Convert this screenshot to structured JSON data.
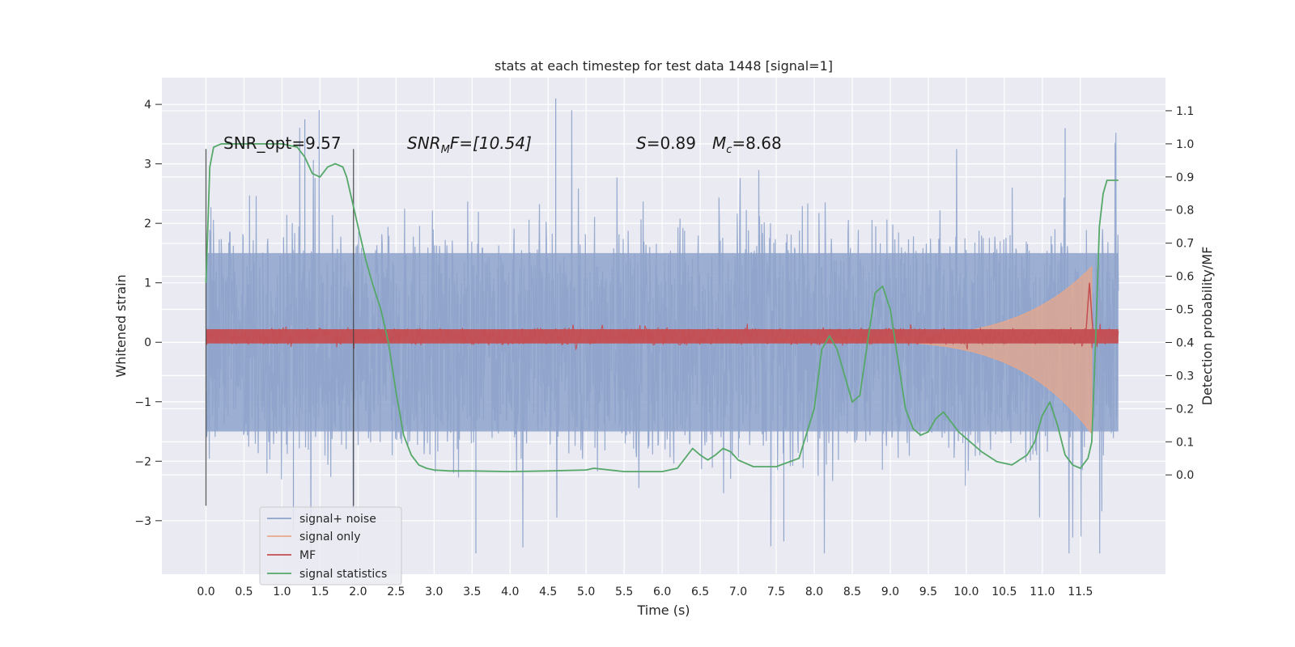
{
  "chart_data": {
    "type": "line",
    "title": "stats at each timestep for test data 1448 [signal=1]",
    "xlabel": "Time (s)",
    "ylabel": "Whitened strain",
    "ylabel_right": "Detection probability/MF",
    "xlim": [
      -0.58,
      12.62
    ],
    "ylim": [
      -3.9,
      4.45
    ],
    "ylim_right": [
      -0.3,
      1.2
    ],
    "x_ticks": [
      "0.0",
      "0.5",
      "1.0",
      "1.5",
      "2.0",
      "2.5",
      "3.0",
      "3.5",
      "4.0",
      "4.5",
      "5.0",
      "5.5",
      "6.0",
      "6.5",
      "7.0",
      "7.5",
      "8.0",
      "8.5",
      "9.0",
      "9.5",
      "10.0",
      "10.5",
      "11.0",
      "11.5"
    ],
    "y_ticks": [
      "−3",
      "−2",
      "−1",
      "0",
      "1",
      "2",
      "3",
      "4"
    ],
    "y_ticks_right": [
      "0.0",
      "0.1",
      "0.2",
      "0.3",
      "0.4",
      "0.5",
      "0.6",
      "0.7",
      "0.8",
      "0.9",
      "1.0",
      "1.1"
    ],
    "grid": true,
    "legend_position": "lower-left",
    "annotations": {
      "snr_opt": "SNR_opt=9.57",
      "snr_mf": "SNR",
      "snr_mf_sub": "M",
      "snr_mf_rest": "F=[10.54]",
      "s_label": "S",
      "s_value": "=0.89",
      "mc_label": "M",
      "mc_sub": "c",
      "mc_value": "=8.68"
    },
    "vertical_markers": [
      0.0,
      1.94
    ],
    "series": [
      {
        "name": "signal+ noise",
        "color": "#8ea3cb",
        "axis": "left",
        "envelope": {
          "x_start": 0.0,
          "x_end": 12.0,
          "typical_amplitude": 1.5,
          "max": 4.1,
          "min": -3.55
        }
      },
      {
        "name": "signal only",
        "color": "#e8a78a",
        "axis": "left",
        "chirp": {
          "x_start": 7.5,
          "x_end": 11.65,
          "peak_amplitude": 1.2
        }
      },
      {
        "name": "MF",
        "color": "#c44e52",
        "axis": "left",
        "band": {
          "x_start": 0.0,
          "x_end": 12.0,
          "center": 0.1,
          "half_width": 0.12,
          "peak_x": 11.62,
          "peak_value": 1.0
        }
      },
      {
        "name": "signal statistics",
        "color": "#55a868",
        "axis": "right",
        "x": [
          0.0,
          0.05,
          0.1,
          0.15,
          0.2,
          0.3,
          0.5,
          0.8,
          1.0,
          1.2,
          1.3,
          1.4,
          1.5,
          1.6,
          1.7,
          1.8,
          1.85,
          1.9,
          2.0,
          2.1,
          2.2,
          2.3,
          2.4,
          2.5,
          2.6,
          2.7,
          2.8,
          2.9,
          3.0,
          3.2,
          3.5,
          4.0,
          4.5,
          5.0,
          5.1,
          5.5,
          6.0,
          6.2,
          6.4,
          6.5,
          6.6,
          6.7,
          6.8,
          6.9,
          7.0,
          7.2,
          7.5,
          7.8,
          8.0,
          8.1,
          8.2,
          8.3,
          8.4,
          8.5,
          8.6,
          8.7,
          8.8,
          8.9,
          9.0,
          9.1,
          9.2,
          9.3,
          9.4,
          9.5,
          9.6,
          9.7,
          9.8,
          9.9,
          10.0,
          10.2,
          10.4,
          10.6,
          10.8,
          10.9,
          11.0,
          11.1,
          11.2,
          11.3,
          11.4,
          11.5,
          11.6,
          11.65,
          11.7,
          11.75,
          11.8,
          11.85,
          11.9,
          12.0
        ],
        "values": [
          0.58,
          0.93,
          0.99,
          0.995,
          1.0,
          1.0,
          1.0,
          1.0,
          1.0,
          0.99,
          0.96,
          0.91,
          0.9,
          0.93,
          0.94,
          0.93,
          0.9,
          0.85,
          0.75,
          0.65,
          0.57,
          0.5,
          0.4,
          0.25,
          0.12,
          0.06,
          0.03,
          0.02,
          0.015,
          0.012,
          0.012,
          0.01,
          0.012,
          0.015,
          0.02,
          0.01,
          0.01,
          0.02,
          0.08,
          0.06,
          0.045,
          0.06,
          0.08,
          0.07,
          0.045,
          0.025,
          0.025,
          0.05,
          0.2,
          0.38,
          0.42,
          0.38,
          0.3,
          0.22,
          0.24,
          0.4,
          0.55,
          0.57,
          0.5,
          0.35,
          0.2,
          0.14,
          0.12,
          0.13,
          0.17,
          0.19,
          0.16,
          0.13,
          0.11,
          0.07,
          0.04,
          0.03,
          0.06,
          0.1,
          0.18,
          0.22,
          0.15,
          0.06,
          0.03,
          0.02,
          0.05,
          0.1,
          0.4,
          0.75,
          0.85,
          0.89,
          0.89,
          0.89
        ]
      }
    ]
  }
}
